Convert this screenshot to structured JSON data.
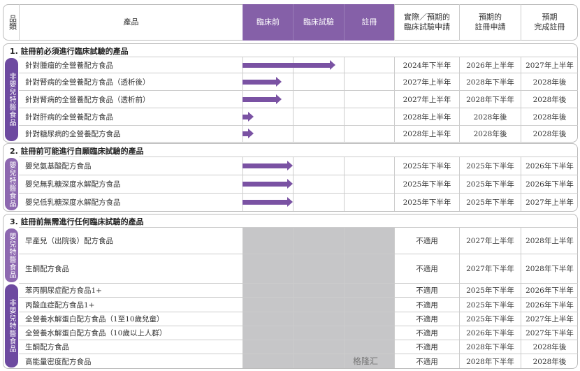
{
  "header": {
    "category": "品類",
    "product": "產品",
    "stages": [
      "臨床前",
      "臨床試驗",
      "註冊"
    ],
    "col_trial": "實際／預期的\n臨床試驗申請",
    "col_reg": "預期的\n註冊申請",
    "col_done": "預期\n完成註冊"
  },
  "colors": {
    "accent": "#8560a8",
    "category_tab": "#6d4aa0",
    "not_applicable_fill": "#c6c6c8"
  },
  "sections": [
    {
      "title": "1. 註冊前必須進行臨床試驗的產品",
      "groups": [
        {
          "label": "非嬰兒特醫食品",
          "rows": [
            {
              "product": "針對腫瘤的全營養配方食品",
              "progress_stages": 1.85,
              "trial": "2024年下半年",
              "reg": "2026年上半年",
              "done": "2027年上半年"
            },
            {
              "product": "針對腎病的全營養配方食品（透析後）",
              "progress_stages": 0.78,
              "trial": "2027年上半年",
              "reg": "2028年下半年",
              "done": "2028年後"
            },
            {
              "product": "針對腎病的全營養配方食品（透析前）",
              "progress_stages": 0.78,
              "trial": "2027年上半年",
              "reg": "2028年下半年",
              "done": "2028年後"
            },
            {
              "product": "針對肝病的全營養配方食品",
              "progress_stages": 0.22,
              "trial": "2028年上半年",
              "reg": "2028年後",
              "done": "2028年後"
            },
            {
              "product": "針對糖尿病的全營養配方食品",
              "progress_stages": 0.22,
              "trial": "2028年上半年",
              "reg": "2028年後",
              "done": "2028年後"
            }
          ]
        }
      ]
    },
    {
      "title": "2. 註冊前可能進行自願臨床試驗的產品",
      "groups": [
        {
          "label": "嬰兒特醫食品",
          "rows": [
            {
              "product": "嬰兒氨基酸配方食品",
              "progress_stages": 1,
              "trial": "2025年下半年",
              "reg": "2025年下半年",
              "done": "2026年下半年"
            },
            {
              "product": "嬰兒無乳糖深度水解配方食品",
              "progress_stages": 1,
              "trial": "2025年下半年",
              "reg": "2025年下半年",
              "done": "2026年下半年"
            },
            {
              "product": "嬰兒低乳糖深度水解配方食品",
              "progress_stages": 1,
              "trial": "2025年下半年",
              "reg": "2025年下半年",
              "done": "2027年上半年"
            }
          ]
        }
      ]
    },
    {
      "title": "3. 註冊前無需進行任何臨床試驗的產品",
      "not_applicable": true,
      "groups": [
        {
          "label": "嬰兒特醫食品",
          "rows": [
            {
              "product": "早產兒（出院後）配方食品",
              "trial": "不適用",
              "reg": "2027年上半年",
              "done": "2028年上半年"
            },
            {
              "product": "生酮配方食品",
              "trial": "不適用",
              "reg": "2027年下半年",
              "done": "2028年下半年"
            }
          ]
        },
        {
          "label": "非嬰兒特醫食品",
          "rows": [
            {
              "product": "苯丙酮尿症配方食品1+",
              "trial": "不適用",
              "reg": "2025年下半年",
              "done": "2026年下半年"
            },
            {
              "product": "丙酸血症配方食品1+",
              "trial": "不適用",
              "reg": "2025年下半年",
              "done": "2026年下半年"
            },
            {
              "product": "全營養水解蛋白配方食品（1至10歲兒童）",
              "trial": "不適用",
              "reg": "2025年下半年",
              "done": "2027年上半年"
            },
            {
              "product": "全營養水解蛋白配方食品（10歲以上人群）",
              "trial": "不適用",
              "reg": "2026年下半年",
              "done": "2027年下半年"
            },
            {
              "product": "生酮配方食品",
              "trial": "不適用",
              "reg": "2028年下半年",
              "done": "2028年後"
            },
            {
              "product": "高能量密度配方食品",
              "trial": "不適用",
              "reg": "2028年下半年",
              "done": "2028年後"
            }
          ]
        }
      ]
    }
  ],
  "watermark": "格隆汇"
}
